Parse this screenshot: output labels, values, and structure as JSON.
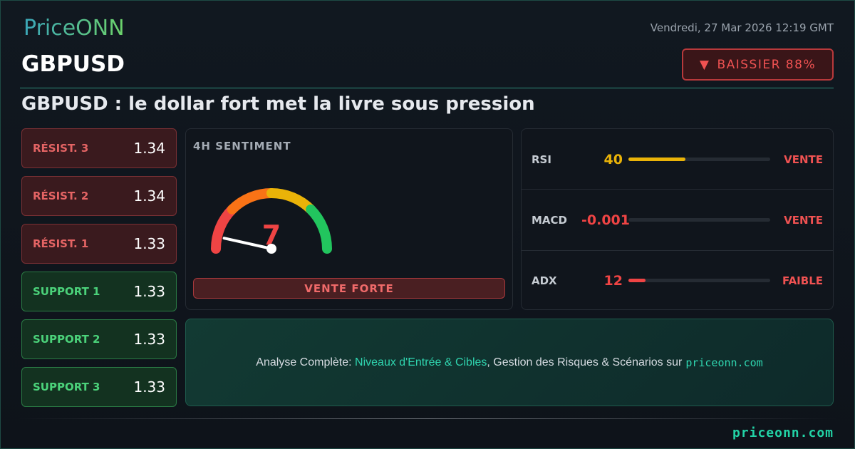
{
  "brand": {
    "logo": "PriceONN",
    "footer": "priceonn.com"
  },
  "symbol": "GBPUSD",
  "date": "Vendredi, 27 Mar 2026 12:19 GMT",
  "badge": {
    "icon": "triangle-down-icon",
    "label": "BAISSIER 88%"
  },
  "headline": "GBPUSD : le dollar fort met la livre sous pression",
  "levels": [
    {
      "label": "RÉSIST. 3",
      "value": "1.34",
      "type": "resistance"
    },
    {
      "label": "RÉSIST. 2",
      "value": "1.34",
      "type": "resistance"
    },
    {
      "label": "RÉSIST. 1",
      "value": "1.33",
      "type": "resistance"
    },
    {
      "label": "SUPPORT 1",
      "value": "1.33",
      "type": "support"
    },
    {
      "label": "SUPPORT 2",
      "value": "1.33",
      "type": "support"
    },
    {
      "label": "SUPPORT 3",
      "value": "1.33",
      "type": "support"
    }
  ],
  "sentiment": {
    "title": "4H SENTIMENT",
    "value": "7",
    "gauge_fraction": 0.07,
    "label": "VENTE FORTE",
    "colors": [
      "#ef4444",
      "#f97316",
      "#eab308",
      "#22c55e"
    ]
  },
  "indicators": [
    {
      "name": "RSI",
      "value": "40",
      "signal": "VENTE",
      "fill_fraction": 0.4,
      "color": "#eab308",
      "signal_color": "#f05252"
    },
    {
      "name": "MACD",
      "value": "-0.001",
      "signal": "VENTE",
      "fill_fraction": 0,
      "color": "#ef4444",
      "signal_color": "#f05252"
    },
    {
      "name": "ADX",
      "value": "12",
      "signal": "FAIBLE",
      "fill_fraction": 0.12,
      "color": "#ef4444",
      "signal_color": "#f05252"
    }
  ],
  "cta": {
    "prefix": "Analyse Complète: ",
    "highlight": "Niveaux d'Entrée & Cibles",
    "suffix": ", Gestion des Risques & Scénarios sur",
    "site": "priceonn.com"
  }
}
